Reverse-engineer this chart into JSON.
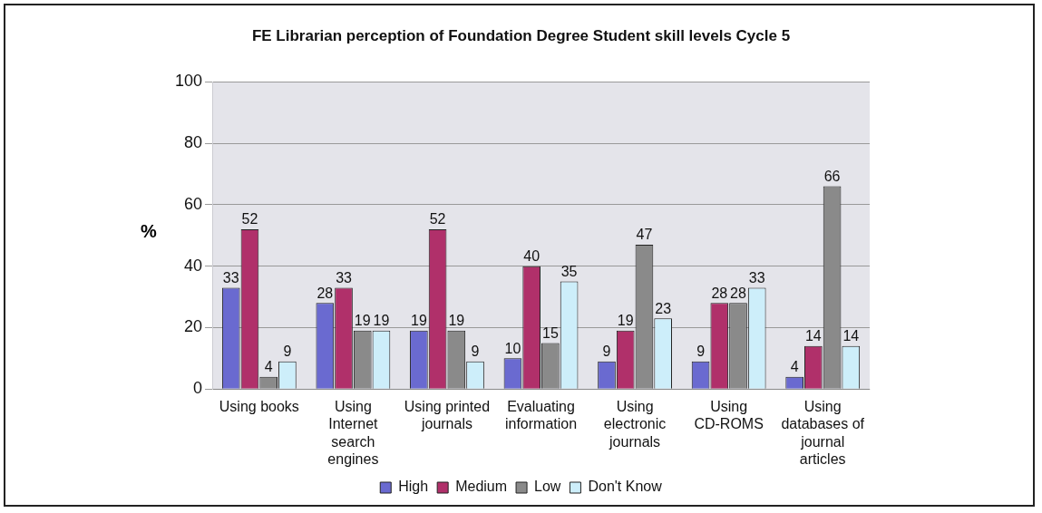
{
  "chart_data": {
    "type": "bar",
    "title": "FE Librarian perception of Foundation Degree Student skill levels Cycle 5",
    "ylabel": "%",
    "categories": [
      "Using books",
      "Using Internet search engines",
      "Using printed journals",
      "Evaluating information",
      "Using electronic journals",
      "Using CD-ROMS",
      "Using databases of journal articles"
    ],
    "series": [
      {
        "name": "High",
        "color": "#6a6ad0",
        "values": [
          33,
          28,
          19,
          10,
          9,
          9,
          4
        ]
      },
      {
        "name": "Medium",
        "color": "#b0306a",
        "values": [
          52,
          33,
          52,
          40,
          19,
          28,
          14
        ]
      },
      {
        "name": "Low",
        "color": "#8a8a8a",
        "values": [
          4,
          19,
          19,
          15,
          47,
          28,
          66
        ]
      },
      {
        "name": "Don't Know",
        "color": "#cdeefa",
        "values": [
          9,
          19,
          9,
          35,
          23,
          33,
          14
        ]
      }
    ],
    "ylim": [
      0,
      100
    ],
    "yticks": [
      0,
      20,
      40,
      60,
      80,
      100
    ],
    "grid": "y",
    "legend": "bottom",
    "data_labels": true
  }
}
